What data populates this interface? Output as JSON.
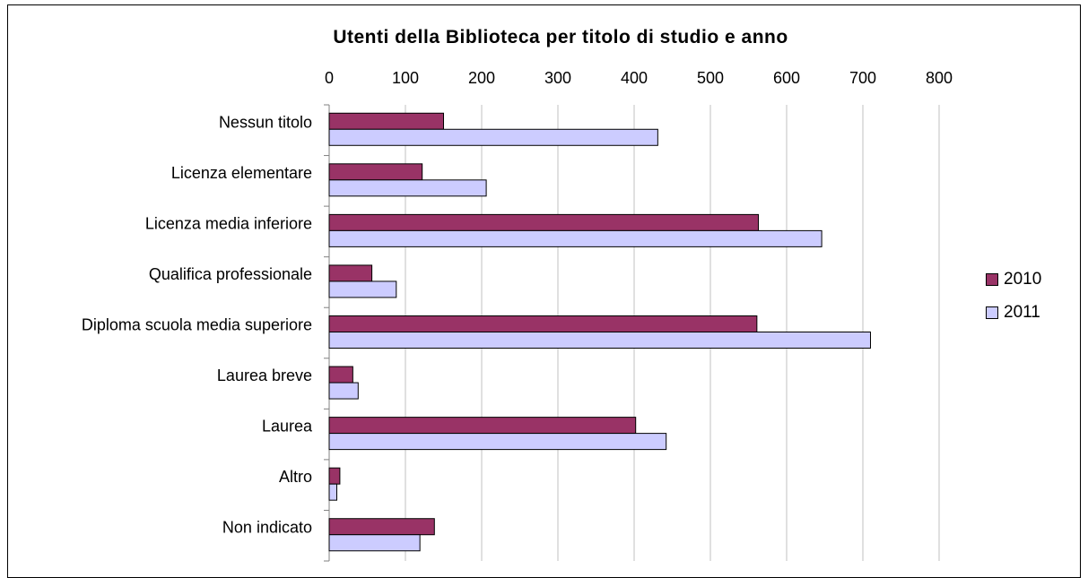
{
  "chart_data": {
    "type": "bar",
    "orientation": "horizontal",
    "title": "Utenti della Biblioteca per titolo di studio e anno",
    "xlabel": "",
    "ylabel": "",
    "xlim": [
      0,
      800
    ],
    "x_ticks": [
      "0",
      "100",
      "200",
      "300",
      "400",
      "500",
      "600",
      "700",
      "800"
    ],
    "x_axis_position": "top",
    "grid": true,
    "legend_position": "right",
    "categories": [
      "Nessun titolo",
      "Licenza elementare",
      "Licenza media inferiore",
      "Qualifica professionale",
      "Diploma scuola media superiore",
      "Laurea breve",
      "Laurea",
      "Altro",
      "Non indicato"
    ],
    "series": [
      {
        "name": "2010",
        "color": "#993366",
        "values": [
          150,
          122,
          563,
          56,
          561,
          31,
          402,
          14,
          138
        ]
      },
      {
        "name": "2011",
        "color": "#ccccff",
        "values": [
          431,
          206,
          646,
          88,
          710,
          38,
          442,
          10,
          119
        ]
      }
    ]
  }
}
